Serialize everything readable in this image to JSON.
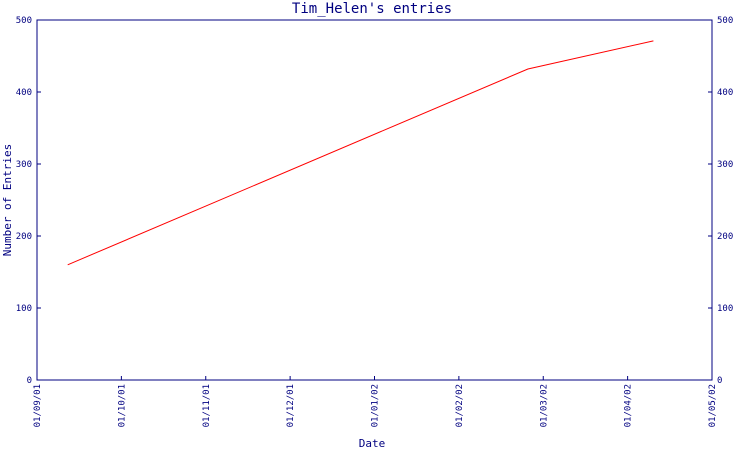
{
  "chart_data": {
    "type": "line",
    "title": "Tim_Helen's entries",
    "xlabel": "Date",
    "ylabel": "Number of Entries",
    "x_ticks": [
      "01/09/01",
      "01/10/01",
      "01/11/01",
      "01/12/01",
      "01/01/02",
      "01/02/02",
      "01/03/02",
      "01/04/02",
      "01/05/02"
    ],
    "xlim": [
      "2001-09-01",
      "2002-05-01"
    ],
    "ylim": [
      0,
      500
    ],
    "y_ticks": [
      0,
      100,
      200,
      300,
      400,
      500
    ],
    "grid": false,
    "right_axis": true,
    "series": [
      {
        "color": "#ff0000",
        "x": [
          "2001-09-12",
          "2002-02-24",
          "2002-04-10"
        ],
        "y": [
          160,
          432,
          471
        ]
      }
    ]
  },
  "colors": {
    "axis": "#000080",
    "line": "#ff0000",
    "background": "#ffffff"
  }
}
